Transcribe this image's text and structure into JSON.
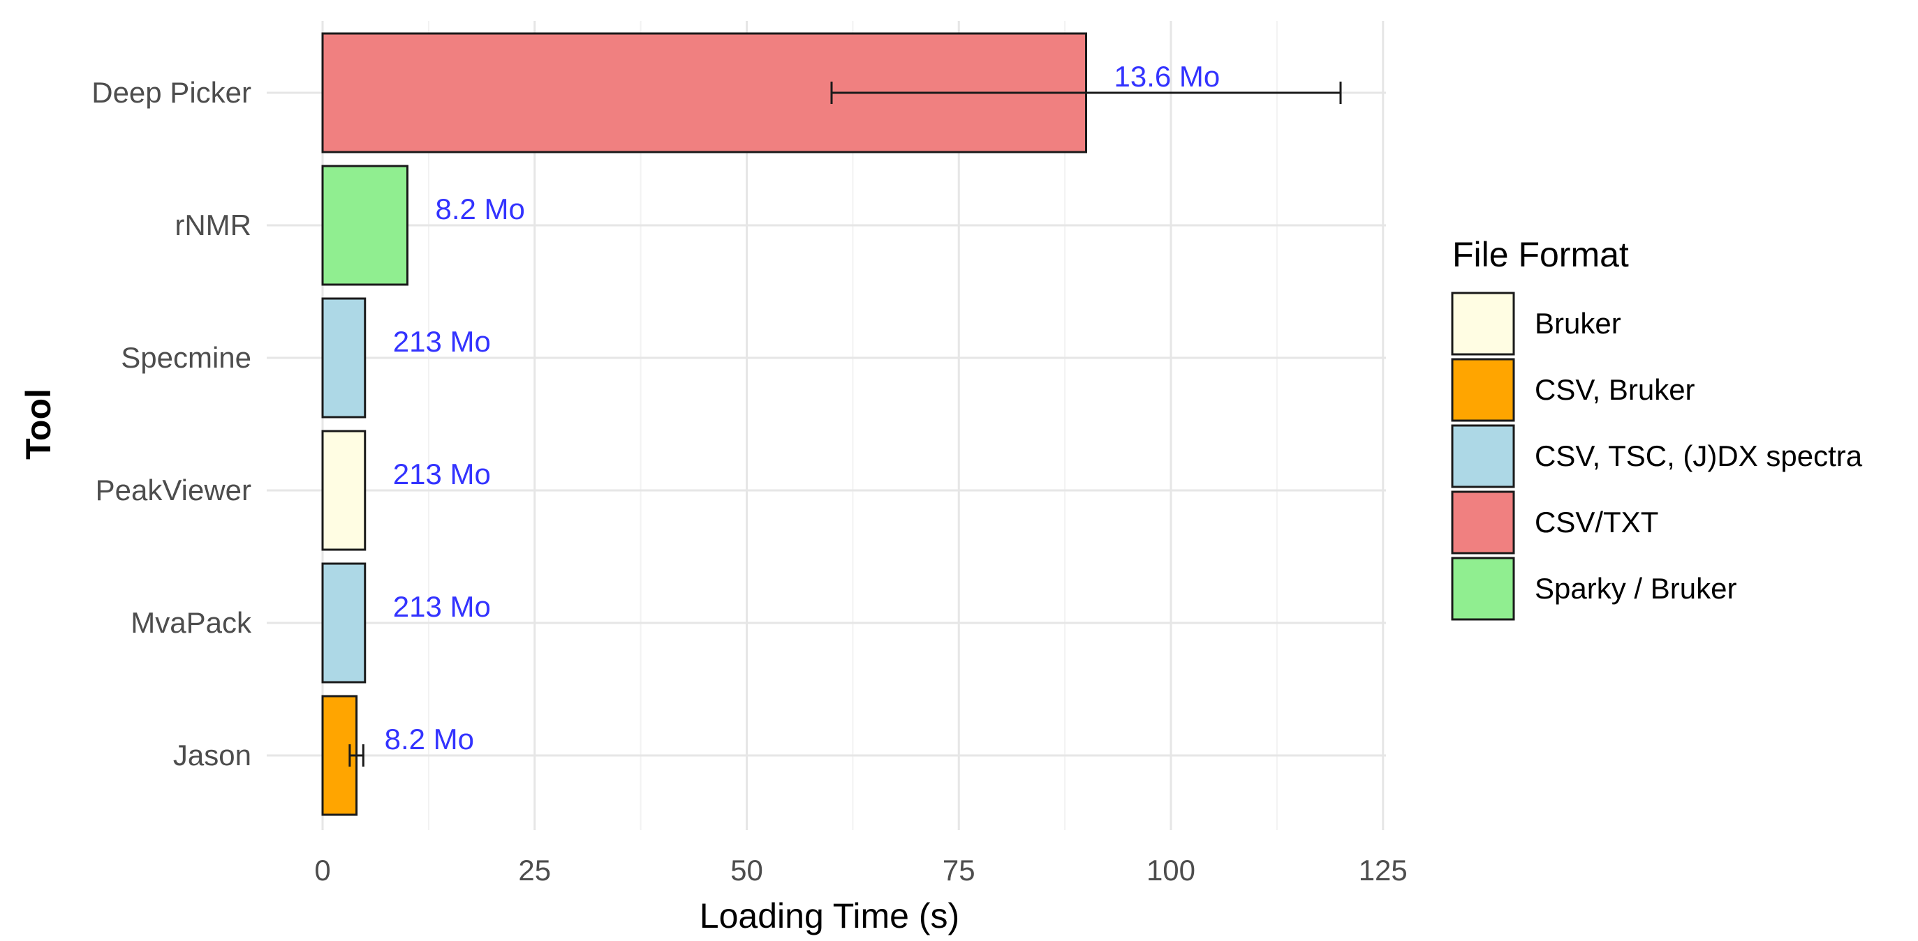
{
  "chart_data": {
    "type": "bar",
    "orientation": "horizontal",
    "xlabel": "Loading Time (s)",
    "ylabel": "Tool",
    "xlim": [
      0,
      125
    ],
    "xticks": [
      0,
      25,
      50,
      75,
      100,
      125
    ],
    "grid": true,
    "legend_position": "right",
    "legend_title": "File Format",
    "categories": [
      "Deep Picker",
      "rNMR",
      "Specmine",
      "PeakViewer",
      "MvaPack",
      "Jason"
    ],
    "values": [
      90,
      10,
      5,
      5,
      5,
      4
    ],
    "error": [
      {
        "low": 60,
        "high": 120
      },
      null,
      null,
      null,
      null,
      {
        "low": 3.2,
        "high": 4.8
      }
    ],
    "labels": [
      "13.6 Mo",
      "8.2 Mo",
      "213 Mo",
      "213 Mo",
      "213 Mo",
      "8.2 Mo"
    ],
    "formats": [
      "CSV/TXT",
      "Sparky / Bruker",
      "CSV, TSC, (J)DX spectra",
      "Bruker",
      "CSV, TSC, (J)DX spectra",
      "CSV, Bruker"
    ],
    "legend": [
      {
        "name": "Bruker",
        "color": "#FFFDE3"
      },
      {
        "name": "CSV, Bruker",
        "color": "#FFA500"
      },
      {
        "name": "CSV, TSC, (J)DX spectra",
        "color": "#ADD8E6"
      },
      {
        "name": "CSV/TXT",
        "color": "#F08080"
      },
      {
        "name": "Sparky / Bruker",
        "color": "#90EE90"
      }
    ],
    "label_color": "#3333ff"
  }
}
